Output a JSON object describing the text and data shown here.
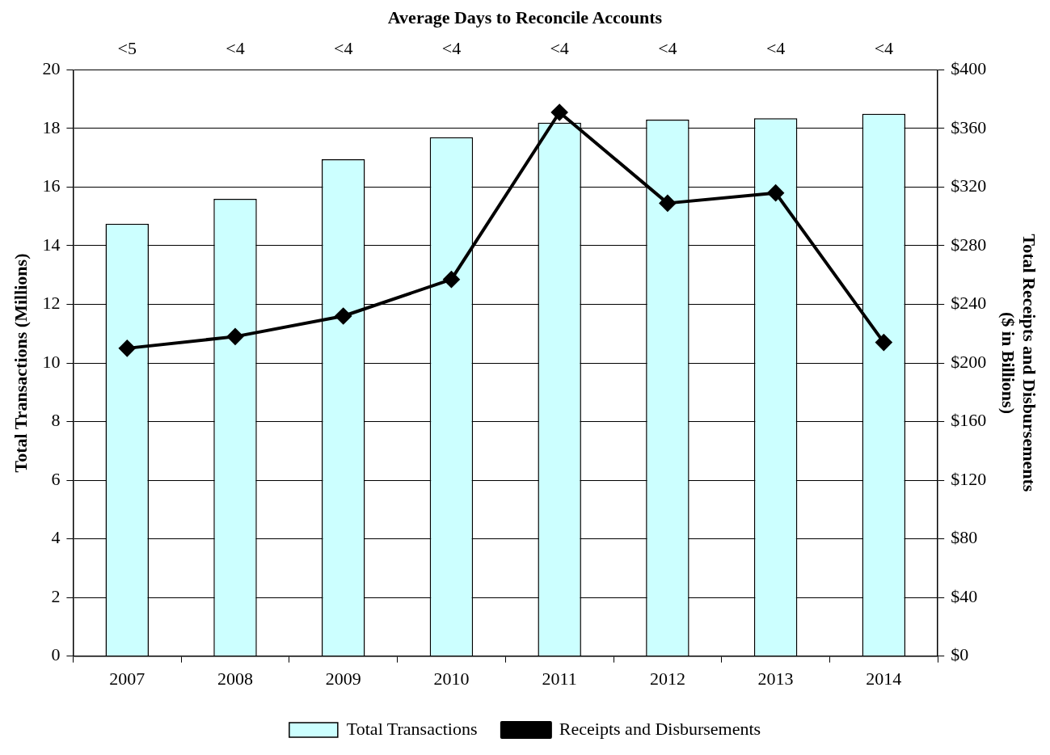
{
  "chart_data": {
    "type": "bar",
    "title": "Average Days to Reconcile Accounts",
    "categories": [
      "2007",
      "2008",
      "2009",
      "2010",
      "2011",
      "2012",
      "2013",
      "2014"
    ],
    "series": [
      {
        "name": "Total Transactions",
        "color": "#ccffff",
        "values": [
          14.75,
          15.6,
          16.95,
          17.7,
          18.2,
          18.3,
          18.35,
          18.5
        ]
      },
      {
        "name": "Receipts and Disbursements",
        "type": "line",
        "axis": "y2",
        "color": "#000000",
        "values": [
          210,
          218,
          232,
          257,
          371,
          309,
          316,
          214
        ]
      }
    ],
    "ylabel": "Total Transactions (Millions)",
    "y2label": "Total Receipts and Disbursements\n($ in Billions)",
    "ylim": [
      0,
      20
    ],
    "yticks": [
      0,
      2,
      4,
      6,
      8,
      10,
      12,
      14,
      16,
      18,
      20
    ],
    "y2lim": [
      0,
      400
    ],
    "y2ticks": [
      {
        "value": 0,
        "label": "$0"
      },
      {
        "value": 40,
        "label": "$40"
      },
      {
        "value": 80,
        "label": "$80"
      },
      {
        "value": 120,
        "label": "$120"
      },
      {
        "value": 160,
        "label": "$160"
      },
      {
        "value": 200,
        "label": "$200"
      },
      {
        "value": 240,
        "label": "$240"
      },
      {
        "value": 280,
        "label": "$280"
      },
      {
        "value": 320,
        "label": "$320"
      },
      {
        "value": 360,
        "label": "$360"
      },
      {
        "value": 400,
        "label": "$400"
      }
    ],
    "annotations": [
      "<5",
      "<4",
      "<4",
      "<4",
      "<4",
      "<4",
      "<4",
      "<4"
    ],
    "grid": "y",
    "legend": "bottom",
    "marker": "diamond",
    "line_style": "solid"
  }
}
